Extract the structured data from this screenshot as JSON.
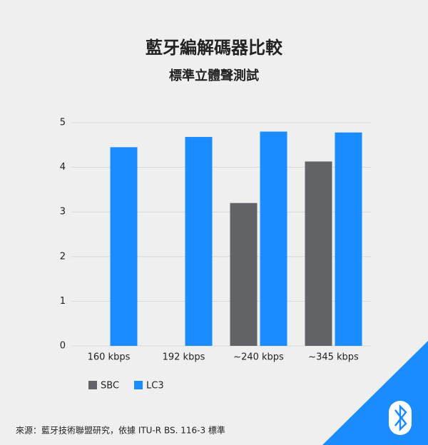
{
  "chart_data": {
    "type": "bar",
    "title": "藍牙編解碼器比較",
    "subtitle": "標準立體聲測試",
    "categories": [
      "160 kbps",
      "192 kbps",
      "~240 kbps",
      "~345 kbps"
    ],
    "series": [
      {
        "name": "SBC",
        "color": "#626366",
        "values": [
          null,
          null,
          3.2,
          4.13
        ]
      },
      {
        "name": "LC3",
        "color": "#1a8cff",
        "values": [
          4.45,
          4.68,
          4.8,
          4.78
        ]
      }
    ],
    "ylim": [
      0,
      5
    ],
    "yticks": [
      0,
      1,
      2,
      3,
      4,
      5
    ],
    "grid": true,
    "source": "來源：藍牙技術聯盟研究，依據 ITU-R BS. 116-3 標準"
  }
}
